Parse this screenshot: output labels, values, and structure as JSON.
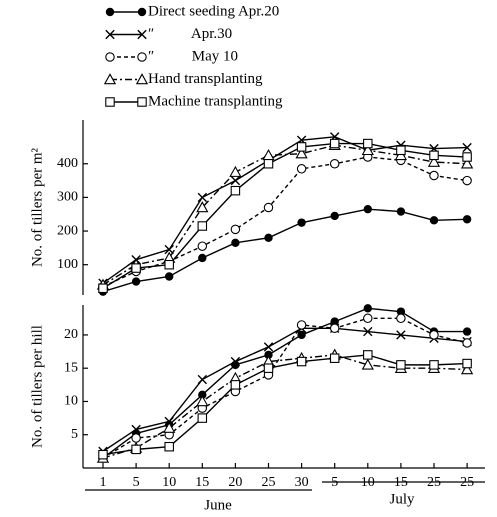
{
  "chart_data": [
    {
      "type": "line",
      "ylabel": "No. of tillers per m²",
      "ylim": [
        10,
        530
      ],
      "yticks": [
        100,
        200,
        300,
        400
      ],
      "series": [
        {
          "name": "Direct seeding Apr.20",
          "color": "#000000",
          "marker": "filled-circle",
          "dash": "solid",
          "values": [
            20,
            50,
            65,
            120,
            165,
            180,
            225,
            245,
            265,
            258,
            232,
            235
          ]
        },
        {
          "name": "″          Apr.30",
          "color": "#000000",
          "marker": "cross",
          "dash": "solid",
          "values": [
            45,
            115,
            145,
            300,
            350,
            410,
            470,
            480,
            440,
            455,
            445,
            448
          ]
        },
        {
          "name": "″          May 10",
          "color": "#000000",
          "marker": "open-circle",
          "dash": "dashed",
          "values": [
            35,
            80,
            110,
            155,
            205,
            270,
            385,
            400,
            420,
            410,
            365,
            350
          ]
        },
        {
          "name": "Hand transplanting",
          "color": "#000000",
          "marker": "triangle",
          "dash": "dash-dot",
          "values": [
            40,
            100,
            120,
            270,
            375,
            425,
            430,
            455,
            440,
            425,
            405,
            400
          ]
        },
        {
          "name": "Machine transplanting",
          "color": "#000000",
          "marker": "square",
          "dash": "solid",
          "values": [
            30,
            90,
            100,
            215,
            320,
            400,
            450,
            460,
            460,
            440,
            425,
            420
          ]
        }
      ]
    },
    {
      "type": "line",
      "ylabel": "No. of tillers per hill",
      "ylim": [
        0,
        24.5
      ],
      "yticks": [
        5,
        10,
        15,
        20
      ],
      "categories": [
        "1",
        "5",
        "10",
        "15",
        "20",
        "25",
        "30",
        "5",
        "10",
        "15",
        "25",
        "25"
      ],
      "groups": [
        "June",
        "July"
      ],
      "series": [
        {
          "color": "#000000",
          "marker": "filled-circle",
          "dash": "solid",
          "values": [
            1.5,
            5.2,
            6.5,
            11,
            15.5,
            17,
            20,
            22,
            24,
            23.5,
            20.5,
            20.5
          ]
        },
        {
          "color": "#000000",
          "marker": "cross",
          "dash": "solid",
          "values": [
            2.5,
            5.8,
            7,
            13.3,
            16,
            18.2,
            21,
            21,
            20.5,
            20,
            19.5,
            19
          ]
        },
        {
          "color": "#000000",
          "marker": "open-circle",
          "dash": "dashed",
          "values": [
            1.5,
            4.5,
            5,
            9,
            11.5,
            14,
            21.5,
            21,
            22.5,
            22.5,
            20,
            18.8
          ]
        },
        {
          "color": "#000000",
          "marker": "triangle",
          "dash": "dash-dot",
          "values": [
            1.5,
            3,
            6,
            10,
            13.5,
            16,
            16.5,
            17,
            15.5,
            15,
            15,
            14.8
          ]
        },
        {
          "color": "#000000",
          "marker": "square",
          "dash": "solid",
          "values": [
            2,
            2.8,
            3.2,
            7.5,
            12.5,
            15,
            16,
            16.5,
            17,
            15.5,
            15.5,
            15.7
          ]
        }
      ]
    }
  ]
}
